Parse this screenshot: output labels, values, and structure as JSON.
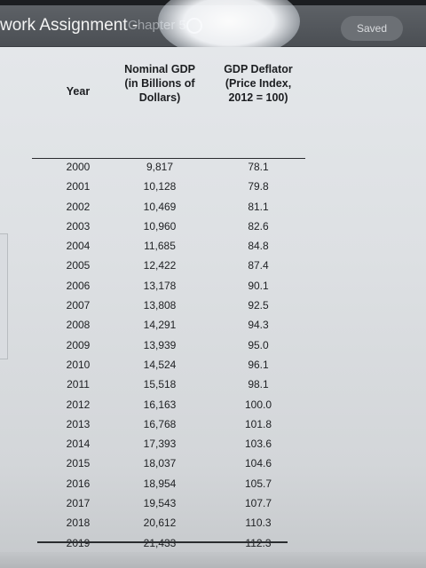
{
  "header": {
    "title": "work Assignment - ",
    "chapter": "Chapter 5",
    "saved_label": "Saved"
  },
  "table": {
    "headers": {
      "year": "Year",
      "nominal_gdp": "Nominal GDP\n(in Billions of\nDollars)",
      "gdp_deflator": "GDP Deflator\n(Price Index,\n2012 = 100)"
    },
    "rows": [
      {
        "year": "2000",
        "nominal_gdp": "9,817",
        "gdp_deflator": "78.1"
      },
      {
        "year": "2001",
        "nominal_gdp": "10,128",
        "gdp_deflator": "79.8"
      },
      {
        "year": "2002",
        "nominal_gdp": "10,469",
        "gdp_deflator": "81.1"
      },
      {
        "year": "2003",
        "nominal_gdp": "10,960",
        "gdp_deflator": "82.6"
      },
      {
        "year": "2004",
        "nominal_gdp": "11,685",
        "gdp_deflator": "84.8"
      },
      {
        "year": "2005",
        "nominal_gdp": "12,422",
        "gdp_deflator": "87.4"
      },
      {
        "year": "2006",
        "nominal_gdp": "13,178",
        "gdp_deflator": "90.1"
      },
      {
        "year": "2007",
        "nominal_gdp": "13,808",
        "gdp_deflator": "92.5"
      },
      {
        "year": "2008",
        "nominal_gdp": "14,291",
        "gdp_deflator": "94.3"
      },
      {
        "year": "2009",
        "nominal_gdp": "13,939",
        "gdp_deflator": "95.0"
      },
      {
        "year": "2010",
        "nominal_gdp": "14,524",
        "gdp_deflator": "96.1"
      },
      {
        "year": "2011",
        "nominal_gdp": "15,518",
        "gdp_deflator": "98.1"
      },
      {
        "year": "2012",
        "nominal_gdp": "16,163",
        "gdp_deflator": "100.0"
      },
      {
        "year": "2013",
        "nominal_gdp": "16,768",
        "gdp_deflator": "101.8"
      },
      {
        "year": "2014",
        "nominal_gdp": "17,393",
        "gdp_deflator": "103.6"
      },
      {
        "year": "2015",
        "nominal_gdp": "18,037",
        "gdp_deflator": "104.6"
      },
      {
        "year": "2016",
        "nominal_gdp": "18,954",
        "gdp_deflator": "105.7"
      },
      {
        "year": "2017",
        "nominal_gdp": "19,543",
        "gdp_deflator": "107.7"
      },
      {
        "year": "2018",
        "nominal_gdp": "20,612",
        "gdp_deflator": "110.3"
      },
      {
        "year": "2019",
        "nominal_gdp": "21,433",
        "gdp_deflator": "112.3"
      }
    ]
  }
}
